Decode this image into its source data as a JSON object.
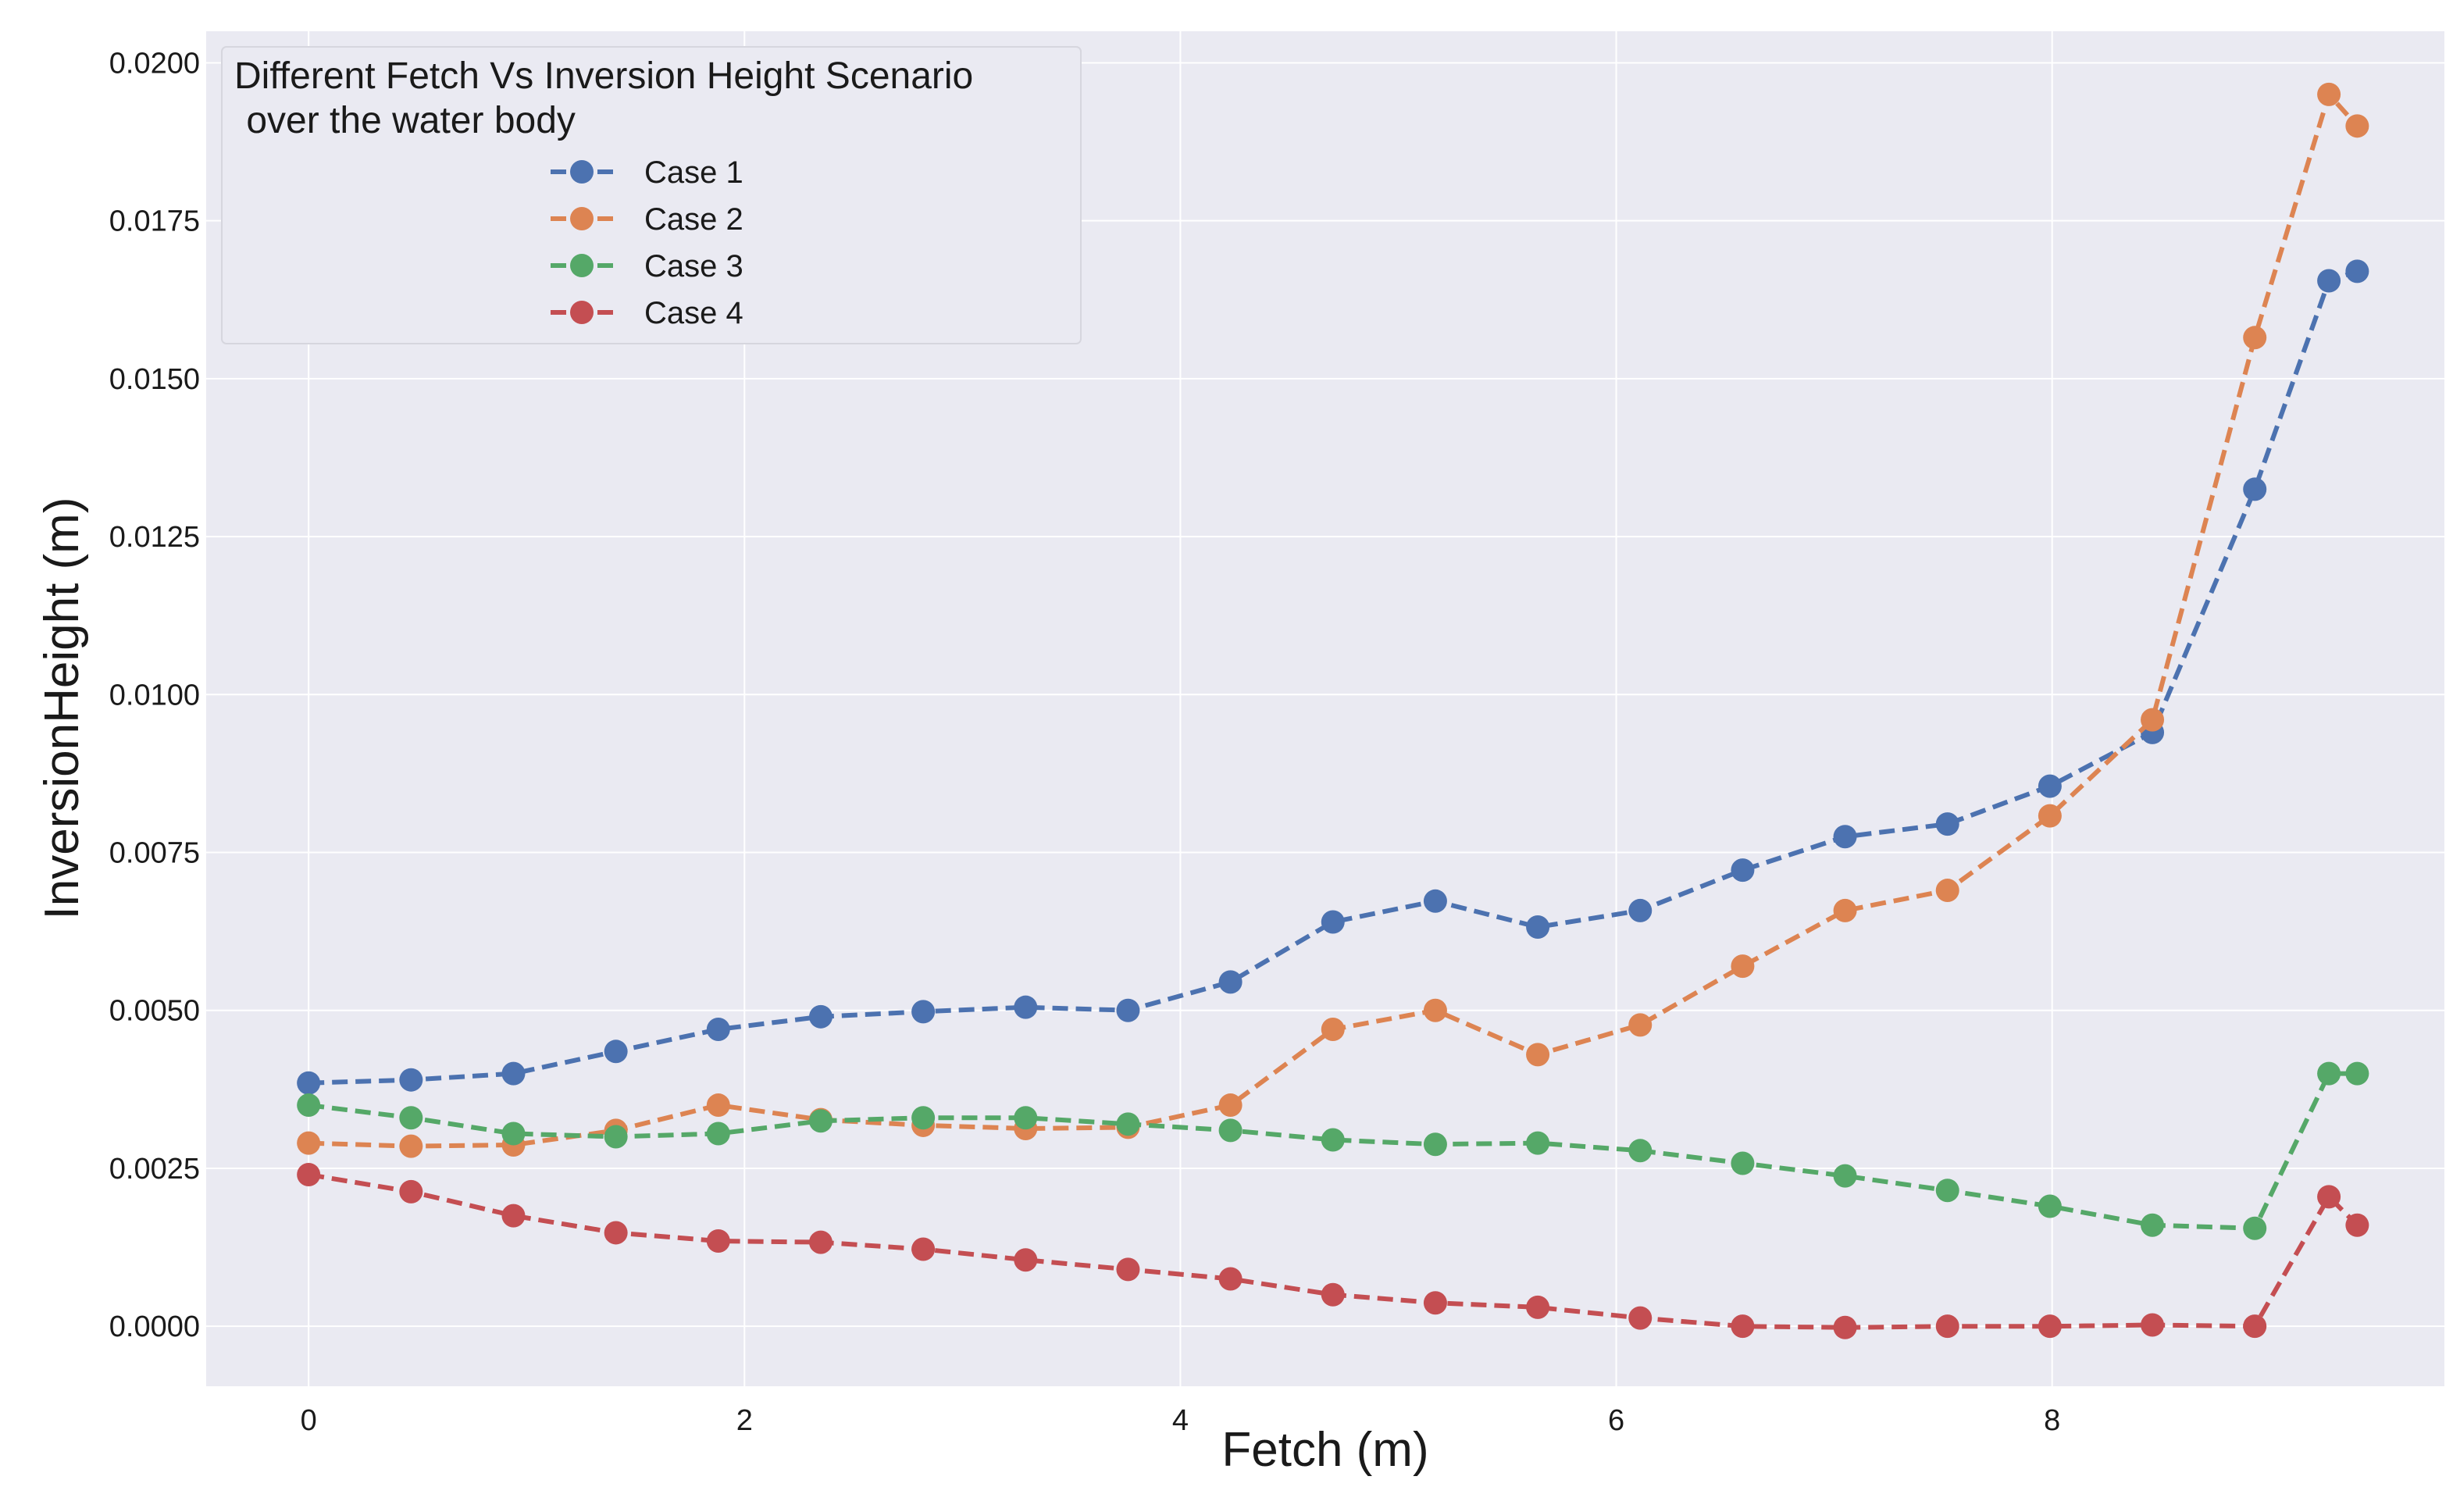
{
  "chart_data": {
    "type": "line",
    "title": "",
    "xlabel": "Fetch (m)",
    "ylabel": "InversionHeight (m)",
    "xlim": [
      -0.47,
      9.8
    ],
    "ylim": [
      -0.00095,
      0.0205
    ],
    "x_ticks": [
      0,
      2,
      4,
      6,
      8
    ],
    "x_tick_labels": [
      "0",
      "2",
      "4",
      "6",
      "8"
    ],
    "y_ticks": [
      0.0,
      0.0025,
      0.005,
      0.0075,
      0.01,
      0.0125,
      0.015,
      0.0175,
      0.02
    ],
    "y_tick_labels": [
      "0.0000",
      "0.0025",
      "0.0050",
      "0.0075",
      "0.0100",
      "0.0125",
      "0.0150",
      "0.0175",
      "0.0200"
    ],
    "grid": true,
    "legend": {
      "title_line1": "Different Fetch Vs Inversion Height Scenario",
      "title_line2": " over the water body",
      "placement": "top-left"
    },
    "x": [
      0.0,
      0.47,
      0.94,
      1.41,
      1.88,
      2.35,
      2.82,
      3.29,
      3.76,
      4.23,
      4.7,
      5.17,
      5.64,
      6.11,
      6.58,
      7.05,
      7.52,
      7.99,
      8.46,
      8.93,
      9.27,
      9.4
    ],
    "series": [
      {
        "name": "Case 1",
        "color": "#4c72b0",
        "values": [
          0.00385,
          0.0039,
          0.004,
          0.00435,
          0.0047,
          0.0049,
          0.00498,
          0.00505,
          0.005,
          0.00545,
          0.0064,
          0.00673,
          0.00632,
          0.00658,
          0.00722,
          0.00775,
          0.00795,
          0.00855,
          0.0094,
          0.01325,
          0.01655,
          0.0167
        ]
      },
      {
        "name": "Case 2",
        "color": "#dd8452",
        "values": [
          0.0029,
          0.00285,
          0.00287,
          0.0031,
          0.0035,
          0.00327,
          0.00318,
          0.00313,
          0.00315,
          0.0035,
          0.0047,
          0.005,
          0.0043,
          0.00477,
          0.0057,
          0.00658,
          0.0069,
          0.00808,
          0.0096,
          0.01565,
          0.0195,
          0.019
        ]
      },
      {
        "name": "Case 3",
        "color": "#55a868",
        "values": [
          0.0035,
          0.0033,
          0.00305,
          0.003,
          0.00305,
          0.00325,
          0.0033,
          0.0033,
          0.0032,
          0.0031,
          0.00295,
          0.00288,
          0.0029,
          0.00278,
          0.00258,
          0.00238,
          0.00215,
          0.0019,
          0.0016,
          0.00155,
          0.004,
          0.004
        ]
      },
      {
        "name": "Case 4",
        "color": "#c44e52",
        "values": [
          0.0024,
          0.00213,
          0.00175,
          0.00148,
          0.00135,
          0.00133,
          0.00122,
          0.00105,
          0.0009,
          0.00075,
          0.0005,
          0.00037,
          0.0003,
          0.00013,
          0.0,
          -2e-05,
          0.0,
          0.0,
          2e-05,
          0.0,
          0.00205,
          0.0016
        ]
      }
    ]
  }
}
